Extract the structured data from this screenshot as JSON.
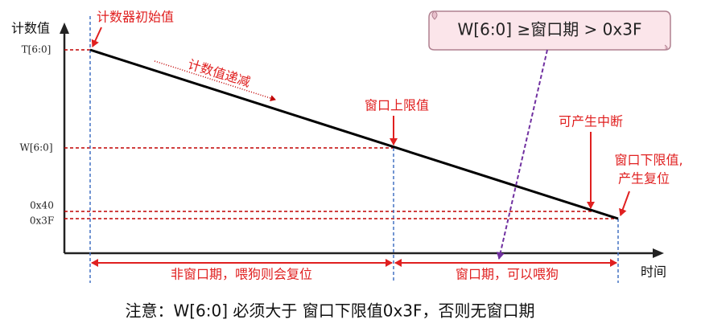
{
  "y_axis_label": "计数值",
  "x_axis_label": "时间",
  "levels": [
    {
      "label": "T[6:0]"
    },
    {
      "label": "W[6:0]"
    },
    {
      "label": "0x40"
    },
    {
      "label": "0x3F"
    }
  ],
  "annotations": {
    "initial": "计数器初始值",
    "decrement": "计数值递减",
    "upper": "窗口上限值",
    "interrupt": "可产生中断",
    "lower_1": "窗口下限值,",
    "lower_2": "产生复位"
  },
  "callout": "W[6:0] ≥窗口期 > 0x3F",
  "spans": [
    {
      "label": "非窗口期，喂狗则会复位"
    },
    {
      "label": "窗口期，可以喂狗"
    }
  ],
  "note": "注意：W[6:0] 必须大于 窗口下限值0x3F，否则无窗口期"
}
